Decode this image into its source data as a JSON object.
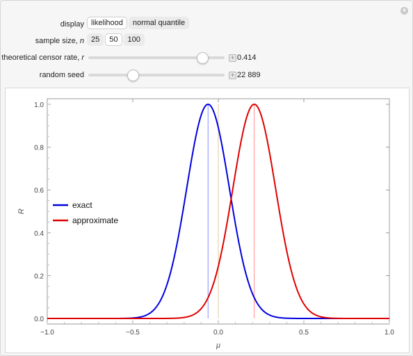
{
  "controls": {
    "display": {
      "label": "display",
      "options": [
        "likelihood",
        "normal quantile"
      ],
      "selected": "likelihood"
    },
    "sample_size": {
      "label": "sample size, n",
      "options": [
        "25",
        "50",
        "100"
      ],
      "selected": "50"
    },
    "censor_rate": {
      "label": "theoretical censor rate, r",
      "value_text": "0.414",
      "value": 0.414
    },
    "random_seed": {
      "label": "random seed",
      "value_text": "22 889"
    }
  },
  "chart_data": {
    "type": "line",
    "xlabel": "μ",
    "ylabel": "R",
    "xlim": [
      -1.0,
      1.0
    ],
    "ylim": [
      0.0,
      1.0
    ],
    "x_ticks": [
      "−1.0",
      "−0.5",
      "0.0",
      "0.5",
      "1.0"
    ],
    "y_ticks": [
      "0.0",
      "0.2",
      "0.4",
      "0.6",
      "0.8",
      "1.0"
    ],
    "legend_position": "left",
    "series": [
      {
        "name": "exact",
        "color": "#0000e0",
        "peak_x": -0.06,
        "sigma": 0.125
      },
      {
        "name": "approximate",
        "color": "#e00000",
        "peak_x": 0.21,
        "sigma": 0.125
      }
    ],
    "vlines": [
      {
        "x": -0.06,
        "color": "#8c8cff"
      },
      {
        "x": 0.0,
        "color": "#e0c8a0"
      },
      {
        "x": 0.21,
        "color": "#ff8c8c"
      }
    ]
  }
}
